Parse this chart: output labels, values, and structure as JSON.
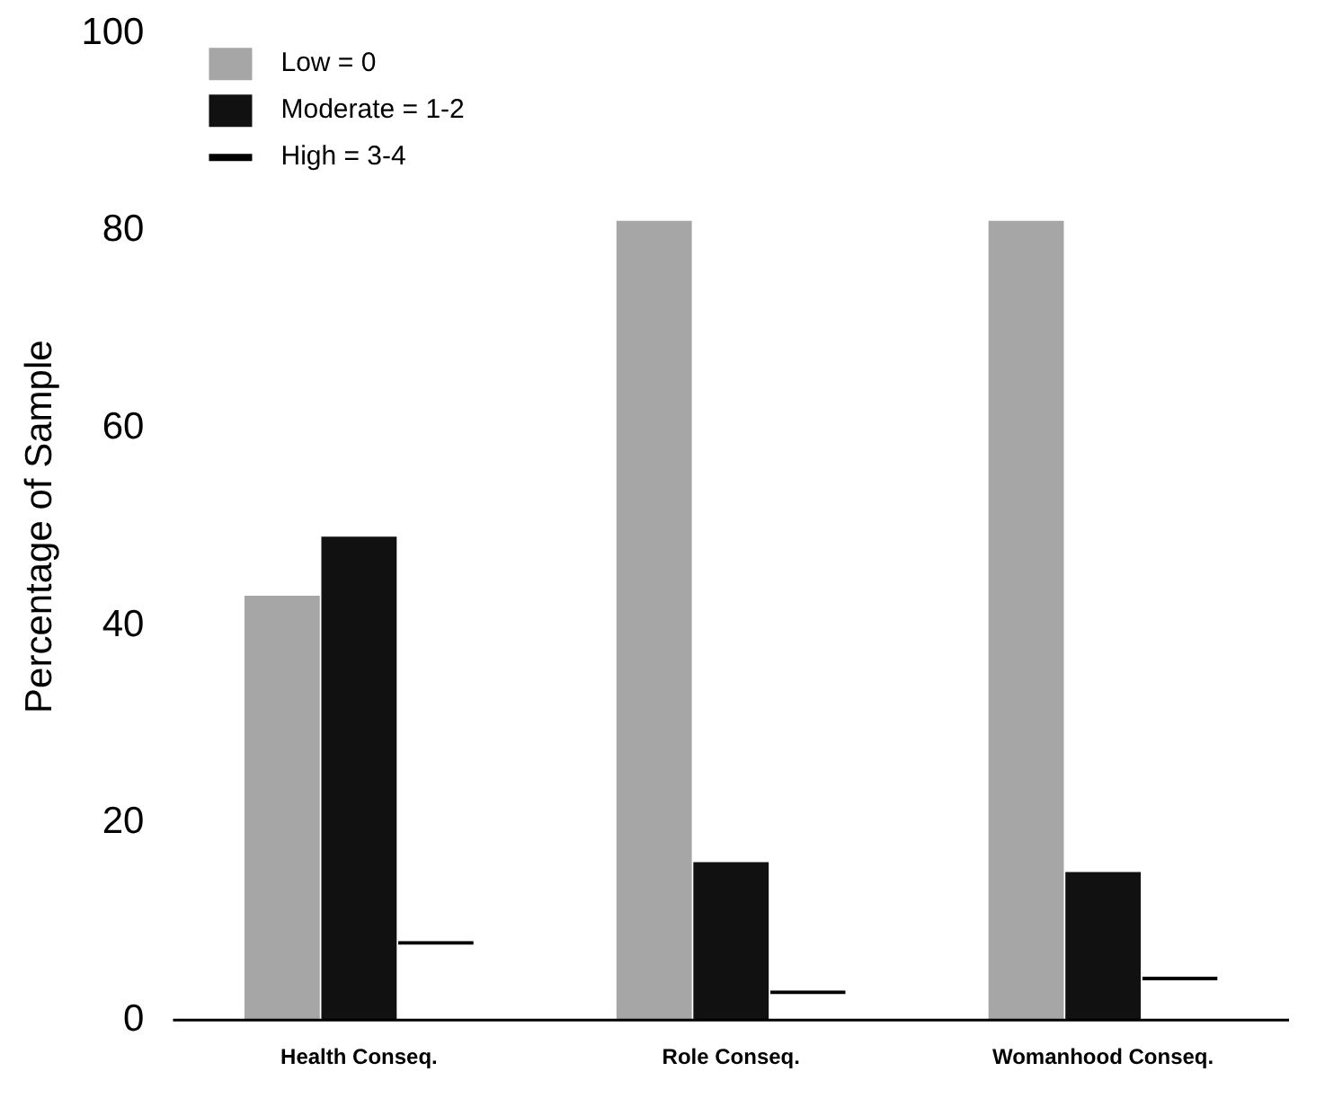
{
  "chart_data": {
    "type": "bar",
    "ylabel": "Percentage of Sample",
    "categories": [
      "Health Conseq.",
      "Role Conseq.",
      "Womanhood Conseq."
    ],
    "series": [
      {
        "name": "Low = 0",
        "color": "#a6a6a6",
        "values": [
          43,
          81,
          81
        ]
      },
      {
        "name": "Moderate = 1-2",
        "color": "#111111",
        "values": [
          49,
          16,
          15
        ]
      },
      {
        "name": "High = 3-4",
        "color": "#000000",
        "values": [
          8,
          3,
          4.4
        ]
      }
    ],
    "ylim": [
      0,
      100
    ],
    "yticks": [
      0,
      20,
      40,
      60,
      80,
      100
    ],
    "grid": false,
    "legend": "top left"
  }
}
